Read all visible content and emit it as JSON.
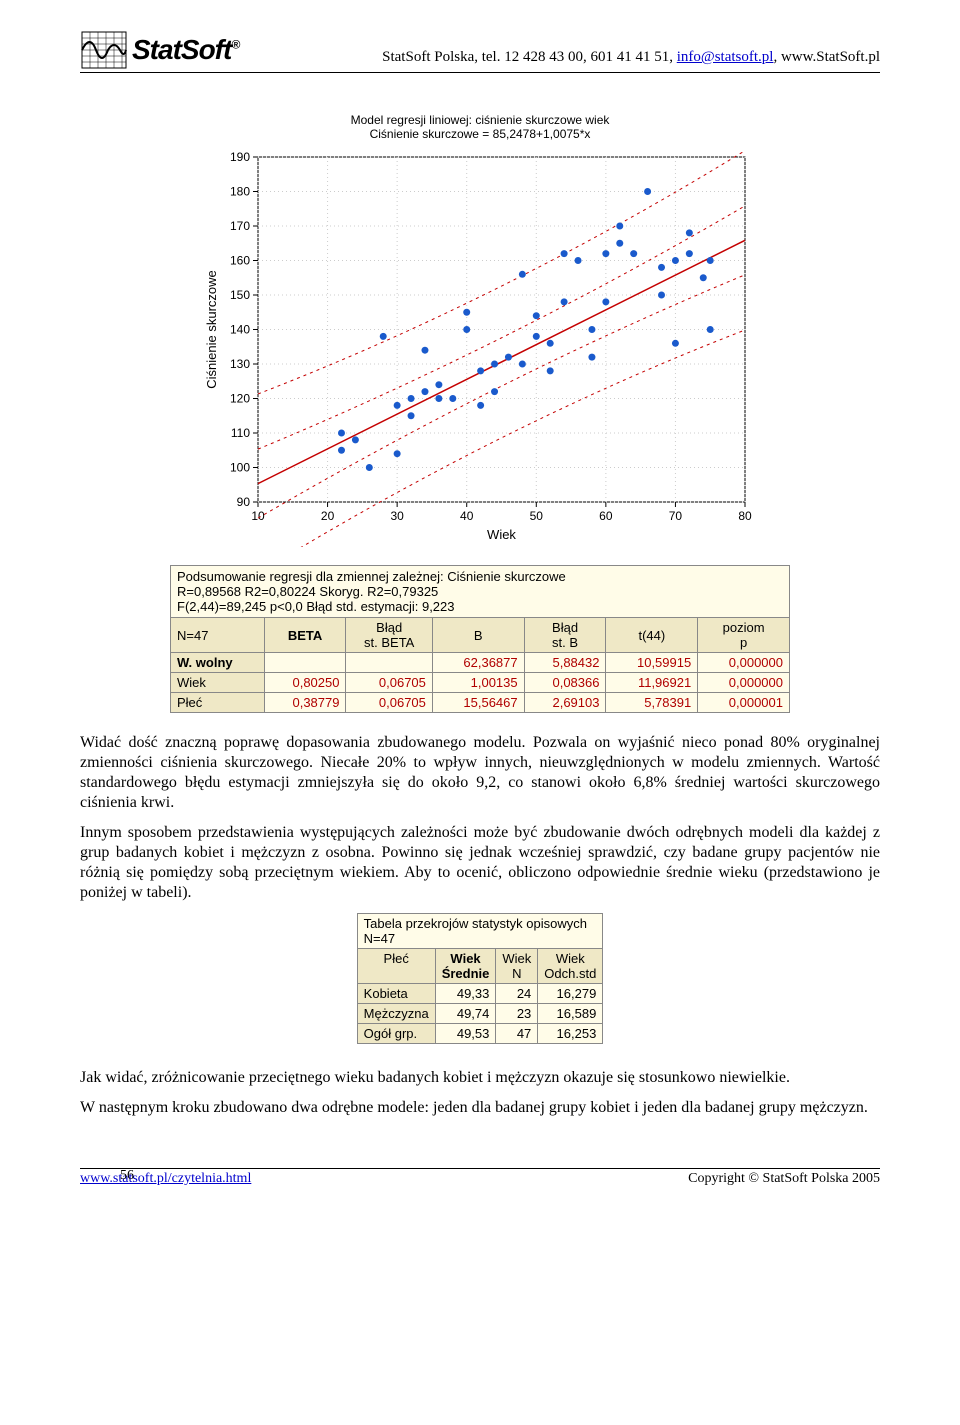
{
  "header": {
    "logo_text": "StatSoft",
    "logo_reg": "®",
    "contact_prefix": "StatSoft Polska, tel. 12 428 43 00, 601 41 41 51, ",
    "email": "info@statsoft.pl",
    "contact_suffix": ", www.StatSoft.pl"
  },
  "chart": {
    "title1": "Model regresji liniowej: ciśnienie skurczowe  wiek",
    "title2": "Ciśnienie skurczowe = 85,2478+1,0075*x",
    "xlabel": "Wiek",
    "ylabel": "Ciśnienie skurczowe",
    "xlim": [
      10,
      80
    ],
    "ylim": [
      90,
      190
    ],
    "xticks": [
      10,
      20,
      30,
      40,
      50,
      60,
      70,
      80
    ],
    "yticks": [
      90,
      100,
      110,
      120,
      130,
      140,
      150,
      160,
      170,
      180,
      190
    ],
    "fit_intercept": 85.2478,
    "fit_slope": 1.0075,
    "line_color": "#c40000",
    "ci_color": "#c40000",
    "point_color": "#1a5acc",
    "points": [
      [
        22,
        105
      ],
      [
        22,
        110
      ],
      [
        24,
        108
      ],
      [
        26,
        100
      ],
      [
        28,
        138
      ],
      [
        30,
        104
      ],
      [
        30,
        118
      ],
      [
        32,
        115
      ],
      [
        32,
        120
      ],
      [
        34,
        134
      ],
      [
        34,
        122
      ],
      [
        36,
        120
      ],
      [
        36,
        124
      ],
      [
        38,
        120
      ],
      [
        40,
        140
      ],
      [
        40,
        145
      ],
      [
        42,
        118
      ],
      [
        42,
        128
      ],
      [
        44,
        130
      ],
      [
        44,
        122
      ],
      [
        46,
        132
      ],
      [
        48,
        130
      ],
      [
        48,
        156
      ],
      [
        50,
        138
      ],
      [
        50,
        144
      ],
      [
        52,
        128
      ],
      [
        52,
        136
      ],
      [
        54,
        148
      ],
      [
        54,
        162
      ],
      [
        56,
        160
      ],
      [
        58,
        132
      ],
      [
        58,
        140
      ],
      [
        60,
        148
      ],
      [
        60,
        162
      ],
      [
        62,
        165
      ],
      [
        62,
        170
      ],
      [
        64,
        162
      ],
      [
        66,
        180
      ],
      [
        68,
        150
      ],
      [
        68,
        158
      ],
      [
        70,
        136
      ],
      [
        70,
        160
      ],
      [
        72,
        162
      ],
      [
        72,
        168
      ],
      [
        74,
        155
      ],
      [
        75,
        160
      ],
      [
        75,
        140
      ]
    ]
  },
  "regtable": {
    "caption_l1": "Podsumowanie regresji dla zmiennej zależnej: Ciśnienie skurczowe",
    "caption_l2": "R=0,89568 R2=0,80224 Skoryg. R2=0,79325",
    "caption_l3": "F(2,44)=89,245 p<0,0 Błąd std. estymacji: 9,223",
    "corner": "N=47",
    "cols": [
      "BETA",
      "Błąd st. BETA",
      "B",
      "Błąd st. B",
      "t(44)",
      "poziom p"
    ],
    "rows": [
      {
        "label": "W. wolny",
        "bold": true,
        "vals": [
          "",
          "",
          "62,36877",
          "5,88432",
          "10,59915",
          "0,000000"
        ]
      },
      {
        "label": "Wiek",
        "bold": false,
        "vals": [
          "0,80250",
          "0,06705",
          "1,00135",
          "0,08366",
          "11,96921",
          "0,000000"
        ]
      },
      {
        "label": "Płeć",
        "bold": false,
        "vals": [
          "0,38779",
          "0,06705",
          "15,56467",
          "2,69103",
          "5,78391",
          "0,000001"
        ]
      }
    ]
  },
  "para1": "Widać dość znaczną poprawę dopasowania zbudowanego modelu. Pozwala on wyjaśnić nieco ponad 80% oryginalnej zmienności ciśnienia skurczowego. Niecałe 20% to wpływ innych, nieuwzględnionych w modelu zmiennych. Wartość standardowego błędu estymacji zmniejszyła się do około 9,2, co stanowi około 6,8% średniej wartości skurczowego ciśnienia krwi.",
  "para2": "Innym sposobem przedstawienia występujących zależności może być zbudowanie dwóch odrębnych modeli dla każdej z grup badanych kobiet i mężczyzn z osobna. Powinno się jednak wcześniej sprawdzić, czy badane grupy pacjentów nie różnią się pomiędzy sobą przeciętnym wiekiem. Aby to ocenić, obliczono odpowiednie średnie wieku (przedstawiono je poniżej w tabeli).",
  "desctable": {
    "caption": "Tabela przekrojów statystyk opisowych N=47",
    "cols": [
      "Płeć",
      "Wiek Średnie",
      "Wiek N",
      "Wiek Odch.std"
    ],
    "rows": [
      {
        "label": "Kobieta",
        "vals": [
          "49,33",
          "24",
          "16,279"
        ]
      },
      {
        "label": "Mężczyzna",
        "vals": [
          "49,74",
          "23",
          "16,589"
        ]
      },
      {
        "label": "Ogół grp.",
        "vals": [
          "49,53",
          "47",
          "16,253"
        ]
      }
    ]
  },
  "para3": "Jak widać, zróżnicowanie przeciętnego wieku badanych kobiet i mężczyzn okazuje się stosunkowo niewielkie.",
  "para4": "W następnym kroku zbudowano dwa odrębne modele: jeden dla badanej grupy kobiet i jeden dla badanej grupy mężczyzn.",
  "footer": {
    "page": "56",
    "left": "www.statsoft.pl/czytelnia.html",
    "right": "Copyright © StatSoft Polska 2005"
  }
}
